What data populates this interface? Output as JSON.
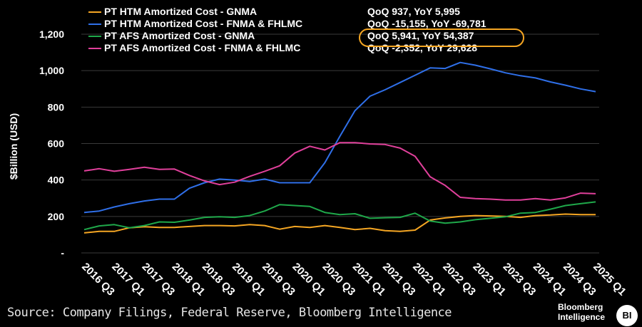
{
  "chart_data": {
    "type": "line",
    "title": "",
    "xlabel": "",
    "ylabel": "$Billion (USD)",
    "ylim": [
      0,
      1200
    ],
    "yticks": [
      0,
      200,
      400,
      600,
      800,
      1000,
      1200
    ],
    "ytick_labels": [
      "-",
      "200",
      "400",
      "600",
      "800",
      "1,000",
      "1,200"
    ],
    "x_tick_labels": [
      "2016 Q3",
      "2017 Q1",
      "2017 Q3",
      "2018 Q1",
      "2018 Q3",
      "2019 Q1",
      "2019 Q3",
      "2020 Q1",
      "2020 Q3",
      "2021 Q1",
      "2021 Q3",
      "2022 Q1",
      "2022 Q3",
      "2023 Q1",
      "2023 Q3",
      "2024 Q1",
      "2024 Q3",
      "2025 Q1"
    ],
    "n_points": 35,
    "series": [
      {
        "name": "PT HTM Amortized Cost - GNMA",
        "color": "#f5a623",
        "stat": "QoQ 937, YoY 5,995",
        "values": [
          110,
          118,
          118,
          138,
          144,
          140,
          140,
          145,
          150,
          150,
          148,
          155,
          150,
          130,
          145,
          140,
          150,
          140,
          128,
          135,
          122,
          118,
          125,
          180,
          192,
          200,
          205,
          203,
          200,
          195,
          205,
          208,
          213,
          210,
          210
        ]
      },
      {
        "name": "PT HTM Amortized Cost - FNMA & FHLMC",
        "color": "#2f6fe8",
        "stat": "QoQ -15,155, YoY -69,781",
        "values": [
          222,
          230,
          252,
          270,
          285,
          295,
          295,
          355,
          385,
          405,
          400,
          392,
          405,
          385,
          385,
          385,
          495,
          640,
          780,
          860,
          895,
          935,
          975,
          1015,
          1012,
          1045,
          1030,
          1010,
          988,
          972,
          960,
          938,
          920,
          900,
          885
        ]
      },
      {
        "name": "PT AFS Amortized Cost - GNMA",
        "color": "#1fa84a",
        "stat": "QoQ 5,941, YoY 54,387",
        "values": [
          128,
          148,
          155,
          138,
          150,
          170,
          168,
          180,
          195,
          198,
          195,
          205,
          230,
          265,
          260,
          255,
          222,
          210,
          215,
          190,
          193,
          195,
          218,
          175,
          163,
          170,
          182,
          190,
          198,
          218,
          222,
          240,
          260,
          270,
          280
        ]
      },
      {
        "name": "PT AFS Amortized Cost - FNMA & FHLMC",
        "color": "#e0409b",
        "stat": "QoQ -2,352, YoY 29,628",
        "values": [
          450,
          462,
          448,
          458,
          470,
          458,
          460,
          425,
          395,
          375,
          388,
          420,
          448,
          478,
          548,
          585,
          565,
          605,
          605,
          598,
          595,
          575,
          530,
          418,
          370,
          305,
          298,
          295,
          290,
          290,
          298,
          290,
          302,
          328,
          325
        ]
      }
    ],
    "highlighted_stat_index": 2
  },
  "footer": {
    "source": "Source: Company Filings, Federal Reserve, Bloomberg Intelligence",
    "brand_line1": "Bloomberg",
    "brand_line2": "Intelligence",
    "badge": "BI"
  }
}
